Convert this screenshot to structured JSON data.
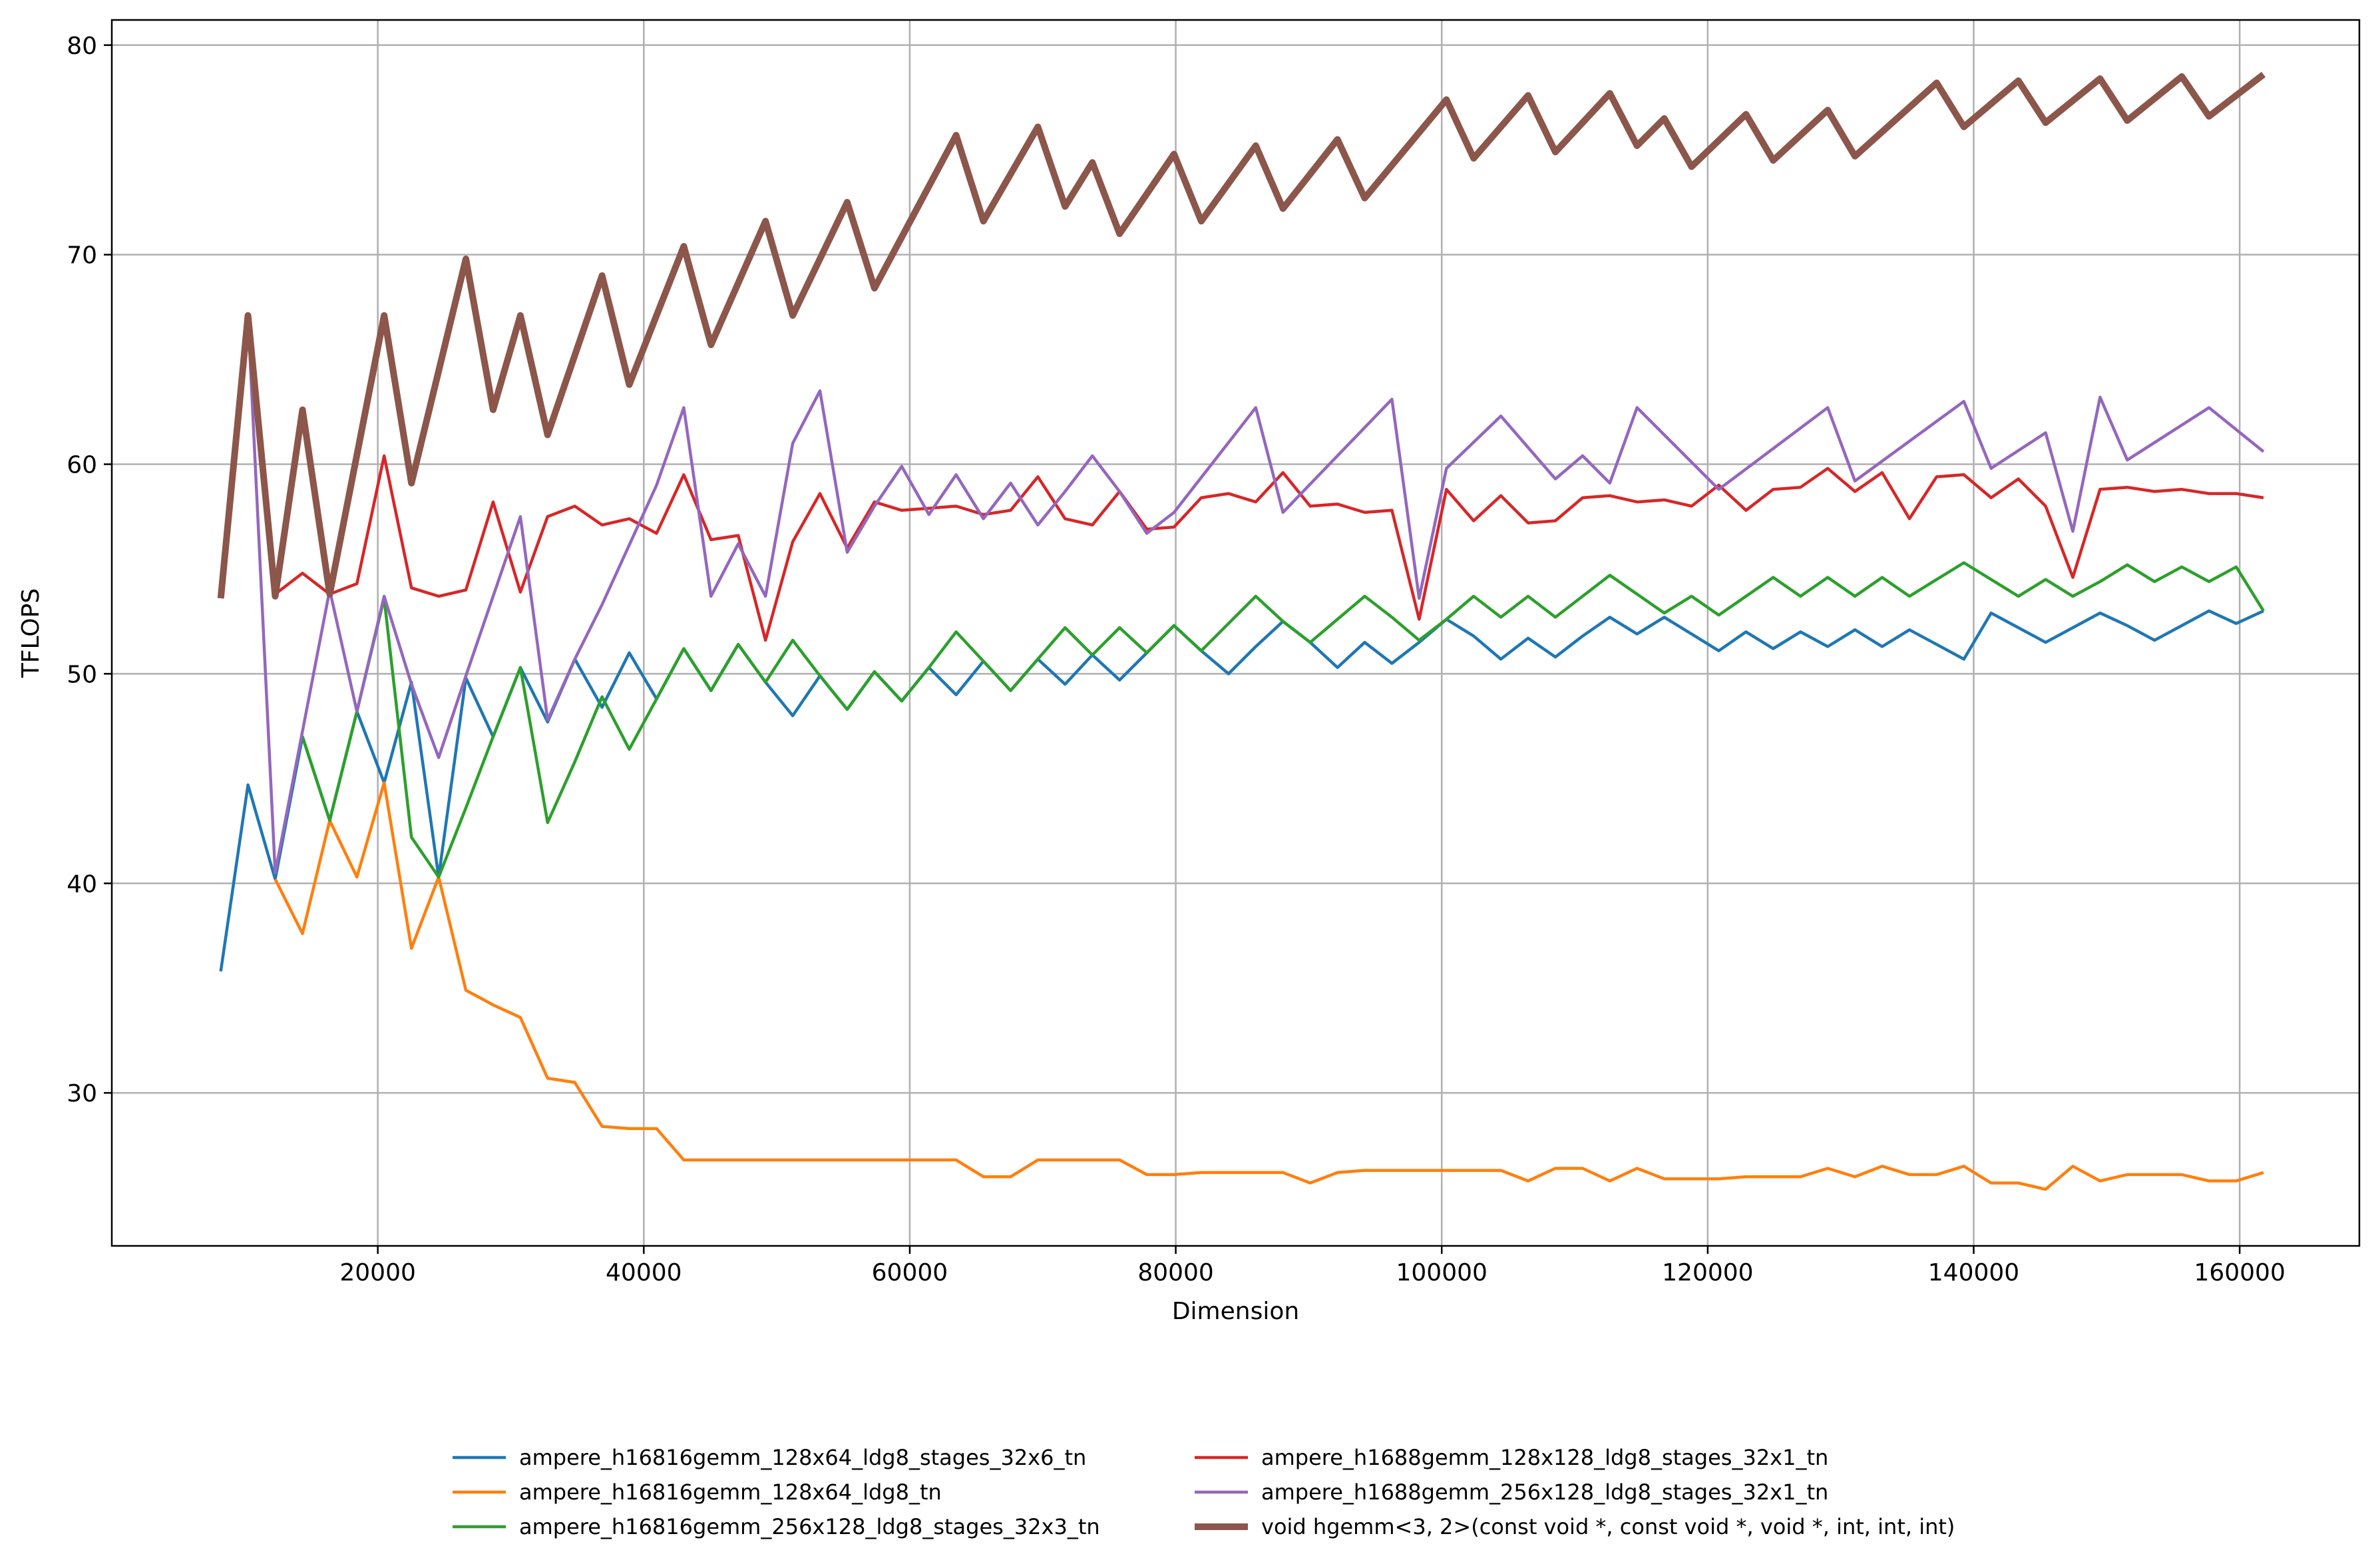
{
  "chart_data": {
    "type": "line",
    "title": "",
    "xlabel": "Dimension",
    "ylabel": "TFLOPS",
    "xlim": [
      0,
      169000
    ],
    "ylim": [
      22.7,
      81.2
    ],
    "xticks": [
      20000,
      40000,
      60000,
      80000,
      100000,
      120000,
      140000,
      160000
    ],
    "xtick_labels": [
      "20000",
      "40000",
      "60000",
      "80000",
      "100000",
      "120000",
      "140000",
      "160000"
    ],
    "yticks": [
      30,
      40,
      50,
      60,
      70,
      80
    ],
    "ytick_labels": [
      "30",
      "40",
      "50",
      "60",
      "70",
      "80"
    ],
    "grid": true,
    "legend_position": "bottom-center, below plot, two columns",
    "series": [
      {
        "name": "ampere_h16816gemm_128x64_ldg8_stages_32x6_tn",
        "color": "#1f77b4",
        "linewidth": "normal",
        "x": [
          8192,
          10240,
          12288,
          14336,
          16384,
          18432,
          20480,
          22528,
          24576,
          26624,
          28672,
          30720,
          32768,
          34816,
          36864,
          38912,
          40960,
          43008,
          45056,
          47104,
          49152,
          51200,
          53248,
          55296,
          57344,
          59392,
          61440,
          63488,
          65536,
          67584,
          69632,
          71680,
          73728,
          75776,
          77824,
          79872,
          81920,
          83968,
          86016,
          88064,
          90112,
          92160,
          94208,
          96256,
          98304,
          100352,
          102400,
          104448,
          106496,
          108544,
          110592,
          112640,
          114688,
          116736,
          118784,
          120832,
          122880,
          124928,
          126976,
          129024,
          131072,
          133120,
          135168,
          137216,
          139264,
          141312,
          143360,
          145408,
          147456,
          149504,
          151552,
          153600,
          155648,
          157696,
          159744,
          161792
        ],
        "y": [
          35.8,
          44.7,
          40.2,
          47.0,
          43.0,
          48.2,
          44.8,
          49.6,
          40.3,
          49.8,
          47.0,
          50.3,
          47.7,
          50.7,
          48.4,
          51.0,
          48.8,
          51.2,
          49.2,
          51.4,
          49.6,
          48.0,
          49.9,
          48.3,
          50.1,
          48.7,
          50.3,
          49.0,
          50.6,
          49.2,
          50.7,
          49.5,
          50.9,
          49.7,
          51.0,
          52.3,
          51.1,
          50.0,
          51.3,
          52.5,
          51.5,
          50.3,
          51.5,
          50.5,
          51.5,
          52.6,
          51.8,
          50.7,
          51.7,
          50.8,
          51.8,
          52.7,
          51.9,
          52.7,
          51.9,
          51.1,
          52.0,
          51.2,
          52.0,
          51.3,
          52.1,
          51.3,
          52.1,
          51.4,
          50.7,
          52.9,
          52.2,
          51.5,
          52.2,
          52.9,
          52.3,
          51.6,
          52.3,
          53.0,
          52.4,
          53.0
        ]
      },
      {
        "name": "ampere_h16816gemm_128x64_ldg8_tn",
        "color": "#ff7f0e",
        "linewidth": "normal",
        "x": [
          12288,
          14336,
          16384,
          18432,
          20480,
          22528,
          24576,
          26624,
          28672,
          30720,
          32768,
          34816,
          36864,
          38912,
          40960,
          43008,
          45056,
          47104,
          49152,
          51200,
          53248,
          55296,
          57344,
          59392,
          61440,
          63488,
          65536,
          67584,
          69632,
          71680,
          73728,
          75776,
          77824,
          79872,
          81920,
          83968,
          86016,
          88064,
          90112,
          92160,
          94208,
          96256,
          98304,
          100352,
          102400,
          104448,
          106496,
          108544,
          110592,
          112640,
          114688,
          116736,
          118784,
          120832,
          122880,
          124928,
          126976,
          129024,
          131072,
          133120,
          135168,
          137216,
          139264,
          141312,
          143360,
          145408,
          147456,
          149504,
          151552,
          153600,
          155648,
          157696,
          159744,
          161792
        ],
        "y": [
          40.2,
          37.6,
          43.0,
          40.3,
          44.8,
          36.9,
          40.3,
          34.9,
          34.2,
          33.6,
          30.7,
          30.5,
          28.4,
          28.3,
          28.3,
          26.8,
          26.8,
          26.8,
          26.8,
          26.8,
          26.8,
          26.8,
          26.8,
          26.8,
          26.8,
          26.8,
          26.0,
          26.0,
          26.8,
          26.8,
          26.8,
          26.8,
          26.1,
          26.1,
          26.2,
          26.2,
          26.2,
          26.2,
          25.7,
          26.2,
          26.3,
          26.3,
          26.3,
          26.3,
          26.3,
          26.3,
          25.8,
          26.4,
          26.4,
          25.8,
          26.4,
          25.9,
          25.9,
          25.9,
          26.0,
          26.0,
          26.0,
          26.4,
          26.0,
          26.5,
          26.1,
          26.1,
          26.5,
          25.7,
          25.7,
          25.4,
          26.5,
          25.8,
          26.1,
          26.1,
          26.1,
          25.8,
          25.8,
          26.2
        ]
      },
      {
        "name": "ampere_h16816gemm_256x128_ldg8_stages_32x3_tn",
        "color": "#2ca02c",
        "linewidth": "normal",
        "x": [
          14336,
          16384,
          18432,
          20480,
          22528,
          24576,
          26624,
          28672,
          30720,
          32768,
          34816,
          36864,
          38912,
          40960,
          43008,
          45056,
          47104,
          49152,
          51200,
          53248,
          55296,
          57344,
          59392,
          61440,
          63488,
          65536,
          67584,
          69632,
          71680,
          73728,
          75776,
          77824,
          79872,
          81920,
          83968,
          86016,
          88064,
          90112,
          92160,
          94208,
          96256,
          98304,
          100352,
          102400,
          104448,
          106496,
          108544,
          110592,
          112640,
          114688,
          116736,
          118784,
          120832,
          122880,
          124928,
          126976,
          129024,
          131072,
          133120,
          135168,
          137216,
          139264,
          141312,
          143360,
          145408,
          147456,
          149504,
          151552,
          153600,
          155648,
          157696,
          159744,
          161792
        ],
        "y": [
          47.0,
          43.0,
          48.2,
          53.6,
          42.2,
          40.3,
          43.6,
          47.0,
          50.3,
          42.9,
          45.8,
          48.9,
          46.4,
          48.8,
          51.2,
          49.2,
          51.4,
          49.6,
          51.6,
          49.9,
          48.3,
          50.1,
          48.7,
          50.3,
          52.0,
          50.6,
          49.2,
          50.7,
          52.2,
          50.9,
          52.2,
          51.0,
          52.3,
          51.1,
          52.4,
          53.7,
          52.5,
          51.5,
          52.6,
          53.7,
          52.7,
          51.6,
          52.6,
          53.7,
          52.7,
          53.7,
          52.7,
          53.7,
          54.7,
          53.8,
          52.9,
          53.7,
          52.8,
          53.7,
          54.6,
          53.7,
          54.6,
          53.7,
          54.6,
          53.7,
          54.5,
          55.3,
          54.5,
          53.7,
          54.5,
          53.7,
          54.4,
          55.2,
          54.4,
          55.1,
          54.4,
          55.1,
          53.0
        ]
      },
      {
        "name": "ampere_h1688gemm_128x128_ldg8_stages_32x1_tn",
        "color": "#d62728",
        "linewidth": "normal",
        "x": [
          12288,
          14336,
          16384,
          18432,
          20480,
          22528,
          24576,
          26624,
          28672,
          30720,
          32768,
          34816,
          36864,
          38912,
          40960,
          43008,
          45056,
          47104,
          49152,
          51200,
          53248,
          55296,
          57344,
          59392,
          61440,
          63488,
          65536,
          67584,
          69632,
          71680,
          73728,
          75776,
          77824,
          79872,
          81920,
          83968,
          86016,
          88064,
          90112,
          92160,
          94208,
          96256,
          98304,
          100352,
          102400,
          104448,
          106496,
          108544,
          110592,
          112640,
          114688,
          116736,
          118784,
          120832,
          122880,
          124928,
          126976,
          129024,
          131072,
          133120,
          135168,
          137216,
          139264,
          141312,
          143360,
          145408,
          147456,
          149504,
          151552,
          153600,
          155648,
          157696,
          159744,
          161792
        ],
        "y": [
          53.8,
          54.8,
          53.8,
          54.3,
          60.4,
          54.1,
          53.7,
          54.0,
          58.2,
          53.9,
          57.5,
          58.0,
          57.1,
          57.4,
          56.7,
          59.5,
          56.4,
          56.6,
          51.6,
          56.3,
          58.6,
          56.0,
          58.2,
          57.8,
          57.9,
          58.0,
          57.6,
          57.8,
          59.4,
          57.4,
          57.1,
          58.7,
          56.9,
          57.0,
          58.4,
          58.6,
          58.2,
          59.6,
          58.0,
          58.1,
          57.7,
          57.8,
          52.6,
          58.8,
          57.3,
          58.5,
          57.2,
          57.3,
          58.4,
          58.5,
          58.2,
          58.3,
          58.0,
          59.0,
          57.8,
          58.8,
          58.9,
          59.8,
          58.7,
          59.6,
          57.4,
          59.4,
          59.5,
          58.4,
          59.3,
          58.0,
          54.6,
          58.8,
          58.9,
          58.7,
          58.8,
          58.6,
          58.6,
          58.4
        ]
      },
      {
        "name": "ampere_h1688gemm_256x128_ldg8_stages_32x1_tn",
        "color": "#9467bd",
        "linewidth": "normal",
        "x": [
          10240,
          12288,
          16384,
          18432,
          20480,
          22528,
          24576,
          26624,
          30720,
          32768,
          34816,
          36864,
          40960,
          43008,
          45056,
          47104,
          49152,
          51200,
          53248,
          55296,
          57344,
          59392,
          61440,
          63488,
          65536,
          67584,
          69632,
          71680,
          73728,
          75776,
          77824,
          79872,
          86016,
          88064,
          96256,
          98304,
          100352,
          104448,
          108544,
          110592,
          112640,
          114688,
          120832,
          129024,
          131072,
          139264,
          141312,
          145408,
          147456,
          149504,
          151552,
          157696,
          161792
        ],
        "y": [
          67.1,
          40.5,
          54.0,
          48.2,
          53.7,
          49.5,
          46.0,
          49.9,
          57.5,
          47.8,
          50.7,
          53.3,
          59.0,
          62.7,
          53.7,
          56.2,
          53.7,
          61.0,
          63.5,
          55.8,
          58.0,
          59.9,
          57.6,
          59.5,
          57.4,
          59.1,
          57.1,
          58.7,
          60.4,
          58.7,
          56.7,
          57.7,
          62.7,
          57.7,
          63.1,
          53.6,
          59.8,
          62.3,
          59.3,
          60.4,
          59.1,
          62.7,
          58.8,
          62.7,
          59.2,
          63.0,
          59.8,
          61.5,
          56.8,
          63.2,
          60.2,
          62.7,
          60.6
        ]
      },
      {
        "name": "void hgemm<3, 2>(const void *, const void *, void *, int, int, int)",
        "color": "#8c564b",
        "linewidth": "thick",
        "x": [
          8192,
          10240,
          12288,
          14336,
          16384,
          20480,
          22528,
          26624,
          28672,
          30720,
          32768,
          36864,
          38912,
          43008,
          45056,
          49152,
          51200,
          55296,
          57344,
          63488,
          65536,
          69632,
          71680,
          73728,
          75776,
          79872,
          81920,
          86016,
          88064,
          92160,
          94208,
          100352,
          102400,
          106496,
          108544,
          112640,
          114688,
          116736,
          118784,
          122880,
          124928,
          129024,
          131072,
          137216,
          139264,
          143360,
          145408,
          149504,
          151552,
          155648,
          157696,
          161792
        ],
        "y": [
          53.6,
          67.1,
          53.7,
          62.6,
          53.8,
          67.1,
          59.1,
          69.8,
          62.6,
          67.1,
          61.4,
          69.0,
          63.8,
          70.4,
          65.7,
          71.6,
          67.1,
          72.5,
          68.4,
          75.7,
          71.6,
          76.1,
          72.3,
          74.4,
          71.0,
          74.8,
          71.6,
          75.2,
          72.2,
          75.5,
          72.7,
          77.4,
          74.6,
          77.6,
          74.9,
          77.7,
          75.2,
          76.5,
          74.2,
          76.7,
          74.5,
          76.9,
          74.7,
          78.2,
          76.1,
          78.3,
          76.3,
          78.4,
          76.4,
          78.5,
          76.6,
          78.6
        ]
      }
    ]
  }
}
